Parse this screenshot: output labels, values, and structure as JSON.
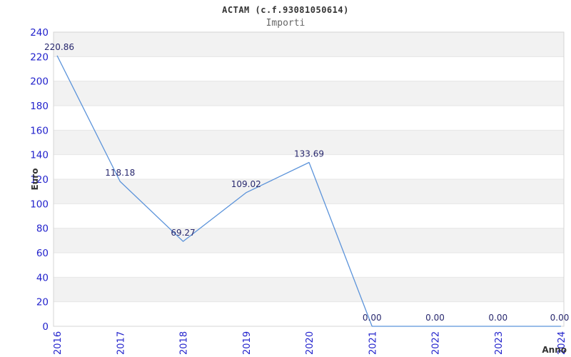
{
  "chart_data": {
    "type": "line",
    "title": "ACTAM (c.f.93081050614)",
    "subtitle": "Importi",
    "xlabel": "Anno",
    "ylabel": "Euro",
    "categories": [
      "2016",
      "2017",
      "2018",
      "2019",
      "2020",
      "2021",
      "2022",
      "2023",
      "2024"
    ],
    "series": [
      {
        "name": "Importi",
        "values": [
          220.86,
          118.18,
          69.27,
          109.02,
          133.69,
          0,
          0,
          0,
          0
        ],
        "data_labels": [
          "220.86",
          "118.18",
          "69.27",
          "109.02",
          "133.69",
          "0.00",
          "0.00",
          "0.00",
          "0.00"
        ]
      }
    ],
    "ylim": [
      0,
      240
    ],
    "ytick_step": 20,
    "yticks": [
      0,
      20,
      40,
      60,
      80,
      100,
      120,
      140,
      160,
      180,
      200,
      220,
      240
    ],
    "grid": "horizontal-bands-alternating",
    "legend": "none",
    "x_label_rotation": -90,
    "colors": {
      "line": "#5b93da",
      "tick_label": "#2222cc",
      "data_label": "#28286e",
      "band_fill": "#f2f2f2",
      "gridline": "#e6e6e6",
      "plot_border": "#d4d4d4",
      "title": "#333333",
      "subtitle": "#666666",
      "axis_title": "#333333",
      "background": "#ffffff"
    }
  }
}
